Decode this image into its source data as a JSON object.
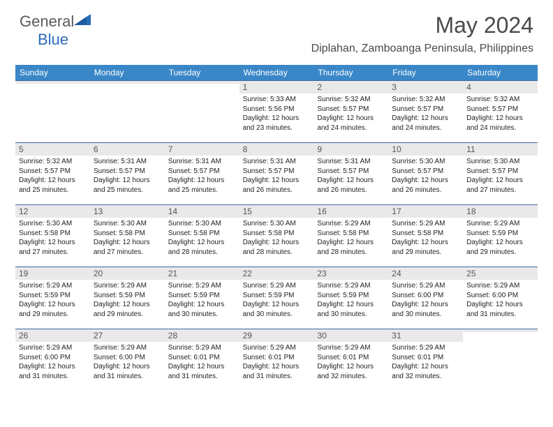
{
  "brand": {
    "part1": "General",
    "part2": "Blue"
  },
  "title": "May 2024",
  "location": "Diplahan, Zamboanga Peninsula, Philippines",
  "colors": {
    "header_bg": "#3a87c8",
    "header_text": "#ffffff",
    "rule": "#3a6a9a",
    "daynum_bg": "#e9e9e9",
    "accent": "#2a6db8",
    "text": "#222222"
  },
  "daynames": [
    "Sunday",
    "Monday",
    "Tuesday",
    "Wednesday",
    "Thursday",
    "Friday",
    "Saturday"
  ],
  "weeks": [
    [
      {
        "day": "",
        "sunrise": "",
        "sunset": "",
        "daylight": ""
      },
      {
        "day": "",
        "sunrise": "",
        "sunset": "",
        "daylight": ""
      },
      {
        "day": "",
        "sunrise": "",
        "sunset": "",
        "daylight": ""
      },
      {
        "day": "1",
        "sunrise": "Sunrise: 5:33 AM",
        "sunset": "Sunset: 5:56 PM",
        "daylight": "Daylight: 12 hours and 23 minutes."
      },
      {
        "day": "2",
        "sunrise": "Sunrise: 5:32 AM",
        "sunset": "Sunset: 5:57 PM",
        "daylight": "Daylight: 12 hours and 24 minutes."
      },
      {
        "day": "3",
        "sunrise": "Sunrise: 5:32 AM",
        "sunset": "Sunset: 5:57 PM",
        "daylight": "Daylight: 12 hours and 24 minutes."
      },
      {
        "day": "4",
        "sunrise": "Sunrise: 5:32 AM",
        "sunset": "Sunset: 5:57 PM",
        "daylight": "Daylight: 12 hours and 24 minutes."
      }
    ],
    [
      {
        "day": "5",
        "sunrise": "Sunrise: 5:32 AM",
        "sunset": "Sunset: 5:57 PM",
        "daylight": "Daylight: 12 hours and 25 minutes."
      },
      {
        "day": "6",
        "sunrise": "Sunrise: 5:31 AM",
        "sunset": "Sunset: 5:57 PM",
        "daylight": "Daylight: 12 hours and 25 minutes."
      },
      {
        "day": "7",
        "sunrise": "Sunrise: 5:31 AM",
        "sunset": "Sunset: 5:57 PM",
        "daylight": "Daylight: 12 hours and 25 minutes."
      },
      {
        "day": "8",
        "sunrise": "Sunrise: 5:31 AM",
        "sunset": "Sunset: 5:57 PM",
        "daylight": "Daylight: 12 hours and 26 minutes."
      },
      {
        "day": "9",
        "sunrise": "Sunrise: 5:31 AM",
        "sunset": "Sunset: 5:57 PM",
        "daylight": "Daylight: 12 hours and 26 minutes."
      },
      {
        "day": "10",
        "sunrise": "Sunrise: 5:30 AM",
        "sunset": "Sunset: 5:57 PM",
        "daylight": "Daylight: 12 hours and 26 minutes."
      },
      {
        "day": "11",
        "sunrise": "Sunrise: 5:30 AM",
        "sunset": "Sunset: 5:57 PM",
        "daylight": "Daylight: 12 hours and 27 minutes."
      }
    ],
    [
      {
        "day": "12",
        "sunrise": "Sunrise: 5:30 AM",
        "sunset": "Sunset: 5:58 PM",
        "daylight": "Daylight: 12 hours and 27 minutes."
      },
      {
        "day": "13",
        "sunrise": "Sunrise: 5:30 AM",
        "sunset": "Sunset: 5:58 PM",
        "daylight": "Daylight: 12 hours and 27 minutes."
      },
      {
        "day": "14",
        "sunrise": "Sunrise: 5:30 AM",
        "sunset": "Sunset: 5:58 PM",
        "daylight": "Daylight: 12 hours and 28 minutes."
      },
      {
        "day": "15",
        "sunrise": "Sunrise: 5:30 AM",
        "sunset": "Sunset: 5:58 PM",
        "daylight": "Daylight: 12 hours and 28 minutes."
      },
      {
        "day": "16",
        "sunrise": "Sunrise: 5:29 AM",
        "sunset": "Sunset: 5:58 PM",
        "daylight": "Daylight: 12 hours and 28 minutes."
      },
      {
        "day": "17",
        "sunrise": "Sunrise: 5:29 AM",
        "sunset": "Sunset: 5:58 PM",
        "daylight": "Daylight: 12 hours and 29 minutes."
      },
      {
        "day": "18",
        "sunrise": "Sunrise: 5:29 AM",
        "sunset": "Sunset: 5:59 PM",
        "daylight": "Daylight: 12 hours and 29 minutes."
      }
    ],
    [
      {
        "day": "19",
        "sunrise": "Sunrise: 5:29 AM",
        "sunset": "Sunset: 5:59 PM",
        "daylight": "Daylight: 12 hours and 29 minutes."
      },
      {
        "day": "20",
        "sunrise": "Sunrise: 5:29 AM",
        "sunset": "Sunset: 5:59 PM",
        "daylight": "Daylight: 12 hours and 29 minutes."
      },
      {
        "day": "21",
        "sunrise": "Sunrise: 5:29 AM",
        "sunset": "Sunset: 5:59 PM",
        "daylight": "Daylight: 12 hours and 30 minutes."
      },
      {
        "day": "22",
        "sunrise": "Sunrise: 5:29 AM",
        "sunset": "Sunset: 5:59 PM",
        "daylight": "Daylight: 12 hours and 30 minutes."
      },
      {
        "day": "23",
        "sunrise": "Sunrise: 5:29 AM",
        "sunset": "Sunset: 5:59 PM",
        "daylight": "Daylight: 12 hours and 30 minutes."
      },
      {
        "day": "24",
        "sunrise": "Sunrise: 5:29 AM",
        "sunset": "Sunset: 6:00 PM",
        "daylight": "Daylight: 12 hours and 30 minutes."
      },
      {
        "day": "25",
        "sunrise": "Sunrise: 5:29 AM",
        "sunset": "Sunset: 6:00 PM",
        "daylight": "Daylight: 12 hours and 31 minutes."
      }
    ],
    [
      {
        "day": "26",
        "sunrise": "Sunrise: 5:29 AM",
        "sunset": "Sunset: 6:00 PM",
        "daylight": "Daylight: 12 hours and 31 minutes."
      },
      {
        "day": "27",
        "sunrise": "Sunrise: 5:29 AM",
        "sunset": "Sunset: 6:00 PM",
        "daylight": "Daylight: 12 hours and 31 minutes."
      },
      {
        "day": "28",
        "sunrise": "Sunrise: 5:29 AM",
        "sunset": "Sunset: 6:01 PM",
        "daylight": "Daylight: 12 hours and 31 minutes."
      },
      {
        "day": "29",
        "sunrise": "Sunrise: 5:29 AM",
        "sunset": "Sunset: 6:01 PM",
        "daylight": "Daylight: 12 hours and 31 minutes."
      },
      {
        "day": "30",
        "sunrise": "Sunrise: 5:29 AM",
        "sunset": "Sunset: 6:01 PM",
        "daylight": "Daylight: 12 hours and 32 minutes."
      },
      {
        "day": "31",
        "sunrise": "Sunrise: 5:29 AM",
        "sunset": "Sunset: 6:01 PM",
        "daylight": "Daylight: 12 hours and 32 minutes."
      },
      {
        "day": "",
        "sunrise": "",
        "sunset": "",
        "daylight": ""
      }
    ]
  ]
}
